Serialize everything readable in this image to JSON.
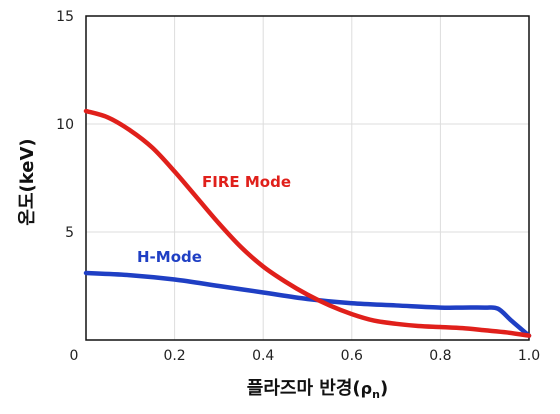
{
  "chart_data": {
    "type": "line",
    "xlabel": "플라즈마 반경(ρn)",
    "xlabel_main": "플라즈마 반경(",
    "xlabel_sym": "ρ",
    "xlabel_sub": "n",
    "xlabel_close": ")",
    "ylabel": "온도(keV)",
    "xlim": [
      0,
      1.0
    ],
    "ylim": [
      0,
      15
    ],
    "xticks": [
      "0",
      "0.2",
      "0.4",
      "0.6",
      "0.8",
      "1.0"
    ],
    "xtick_values": [
      0,
      0.2,
      0.4,
      0.6,
      0.8,
      1.0
    ],
    "yticks": [
      "5",
      "10",
      "15"
    ],
    "ytick_values": [
      5,
      10,
      15
    ],
    "origin_label": "0",
    "grid": true,
    "series": [
      {
        "name": "FIRE Mode",
        "color": "#e0201b",
        "x": [
          0,
          0.05,
          0.1,
          0.15,
          0.2,
          0.25,
          0.3,
          0.35,
          0.4,
          0.45,
          0.5,
          0.55,
          0.6,
          0.65,
          0.7,
          0.75,
          0.8,
          0.85,
          0.9,
          0.95,
          1.0
        ],
        "y": [
          10.6,
          10.3,
          9.7,
          8.9,
          7.8,
          6.6,
          5.4,
          4.3,
          3.4,
          2.7,
          2.1,
          1.6,
          1.2,
          0.9,
          0.75,
          0.65,
          0.6,
          0.55,
          0.45,
          0.35,
          0.2
        ]
      },
      {
        "name": "H-Mode",
        "color": "#1f3fc4",
        "x": [
          0,
          0.1,
          0.2,
          0.3,
          0.4,
          0.5,
          0.6,
          0.7,
          0.8,
          0.85,
          0.9,
          0.93,
          0.96,
          1.0
        ],
        "y": [
          3.1,
          3.0,
          2.8,
          2.5,
          2.2,
          1.9,
          1.7,
          1.6,
          1.5,
          1.5,
          1.5,
          1.45,
          0.9,
          0.2
        ]
      }
    ]
  }
}
